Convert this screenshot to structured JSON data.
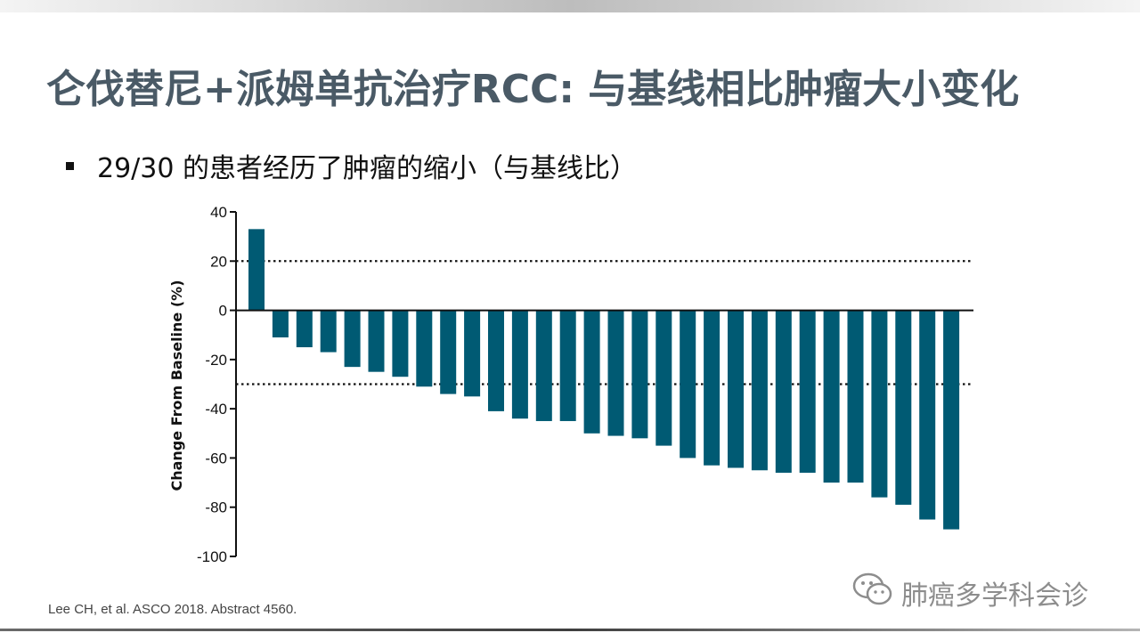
{
  "slide": {
    "title": "仑伐替尼+派姆单抗治疗RCC: 与基线相比肿瘤大小变化",
    "bullet": "29/30 的患者经历了肿瘤的缩小（与基线比）",
    "citation": "Lee CH, et al. ASCO 2018. Abstract 4560.",
    "watermark": "肺癌多学科会诊"
  },
  "chart_data": {
    "type": "bar",
    "title": "",
    "xlabel": "",
    "ylabel": "Change From Baseline (%)",
    "ylim": [
      -100,
      40
    ],
    "yticks": [
      40,
      20,
      0,
      -20,
      -40,
      -60,
      -80,
      -100
    ],
    "reference_lines": [
      20,
      -30
    ],
    "bar_color": "#005a73",
    "values": [
      33,
      -11,
      -15,
      -17,
      -23,
      -25,
      -27,
      -31,
      -34,
      -35,
      -41,
      -44,
      -45,
      -45,
      -50,
      -51,
      -52,
      -55,
      -60,
      -63,
      -64,
      -65,
      -66,
      -66,
      -70,
      -70,
      -76,
      -79,
      -85,
      -89
    ]
  }
}
